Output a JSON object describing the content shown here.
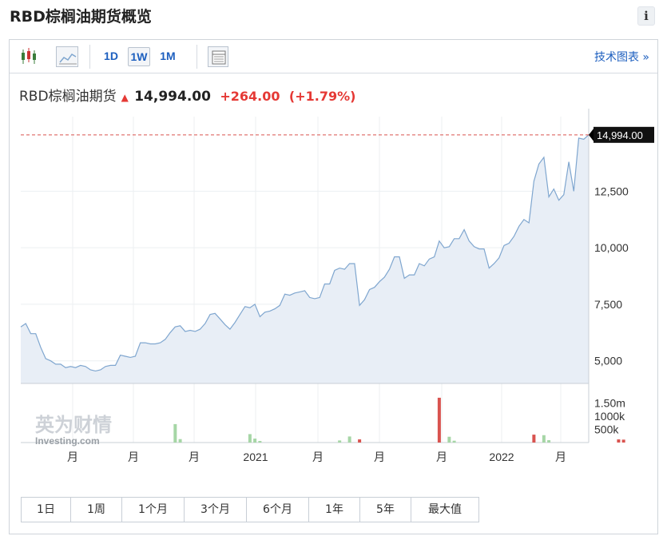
{
  "header": {
    "title": "RBD棕榈油期货概览",
    "info_label": "i"
  },
  "toolbar": {
    "periods": [
      "1D",
      "1W",
      "1M"
    ],
    "active_period": "1W",
    "tech_link": "技术图表 »"
  },
  "quote": {
    "name": "RBD棕榈油期货",
    "price": "14,994.00",
    "change": "+264.00",
    "change_pct": "(+1.79%)"
  },
  "ranges": [
    "1日",
    "1周",
    "1个月",
    "3个月",
    "6个月",
    "1年",
    "5年",
    "最大值"
  ],
  "watermark": {
    "cn": "英为财情",
    "en": "Investing.com"
  },
  "colors": {
    "line": "#7fa6cf",
    "area": "#e8eef6",
    "up": "#e53935",
    "down_vol": "#a6d6a6",
    "up_vol": "#d9534f"
  },
  "chart_data": {
    "type": "area",
    "last_value_label": "14,994.00",
    "y_ticks": [
      5000,
      7500,
      10000,
      12500
    ],
    "y_tick_labels": [
      "5,000",
      "7,500",
      "10,000",
      "12,500"
    ],
    "ylim": [
      4000,
      15800
    ],
    "x_labels": [
      "月",
      "月",
      "月",
      "2021",
      "月",
      "月",
      "月",
      "2022",
      "月"
    ],
    "values": [
      6500,
      6650,
      6200,
      6200,
      5600,
      5100,
      5000,
      4850,
      4850,
      4700,
      4750,
      4700,
      4800,
      4750,
      4600,
      4550,
      4600,
      4750,
      4800,
      4800,
      5250,
      5200,
      5150,
      5200,
      5800,
      5800,
      5750,
      5750,
      5800,
      5950,
      6250,
      6500,
      6550,
      6300,
      6350,
      6300,
      6400,
      6650,
      7050,
      7100,
      6850,
      6600,
      6400,
      6700,
      7050,
      7400,
      7350,
      7500,
      6950,
      7150,
      7200,
      7300,
      7450,
      7950,
      7900,
      8000,
      8050,
      8100,
      7800,
      7750,
      7800,
      8400,
      8400,
      9000,
      9100,
      9050,
      9300,
      9300,
      7450,
      7700,
      8150,
      8250,
      8500,
      8700,
      9050,
      9600,
      9600,
      8650,
      8800,
      8800,
      9300,
      9200,
      9500,
      9600,
      10300,
      10000,
      10050,
      10400,
      10400,
      10800,
      10300,
      10050,
      9950,
      9950,
      9100,
      9300,
      9550,
      10100,
      10200,
      10500,
      10950,
      11250,
      11100,
      12950,
      13700,
      14000,
      12250,
      12600,
      12100,
      12350,
      13800,
      12500,
      14850,
      14800,
      14994
    ],
    "volume_ticks": [
      "1.50m",
      "1000k",
      "500k"
    ],
    "volume": [
      {
        "i": 31,
        "v": 700000,
        "dir": "down"
      },
      {
        "i": 32,
        "v": 130000,
        "dir": "down"
      },
      {
        "i": 46,
        "v": 320000,
        "dir": "down"
      },
      {
        "i": 47,
        "v": 150000,
        "dir": "down"
      },
      {
        "i": 48,
        "v": 60000,
        "dir": "down"
      },
      {
        "i": 64,
        "v": 80000,
        "dir": "down"
      },
      {
        "i": 66,
        "v": 230000,
        "dir": "down"
      },
      {
        "i": 68,
        "v": 120000,
        "dir": "up"
      },
      {
        "i": 84,
        "v": 1700000,
        "dir": "up"
      },
      {
        "i": 86,
        "v": 220000,
        "dir": "down"
      },
      {
        "i": 87,
        "v": 70000,
        "dir": "down"
      },
      {
        "i": 103,
        "v": 300000,
        "dir": "up"
      },
      {
        "i": 105,
        "v": 280000,
        "dir": "down"
      },
      {
        "i": 106,
        "v": 90000,
        "dir": "down"
      },
      {
        "i": 120,
        "v": 120000,
        "dir": "up"
      },
      {
        "i": 121,
        "v": 110000,
        "dir": "up"
      }
    ]
  }
}
